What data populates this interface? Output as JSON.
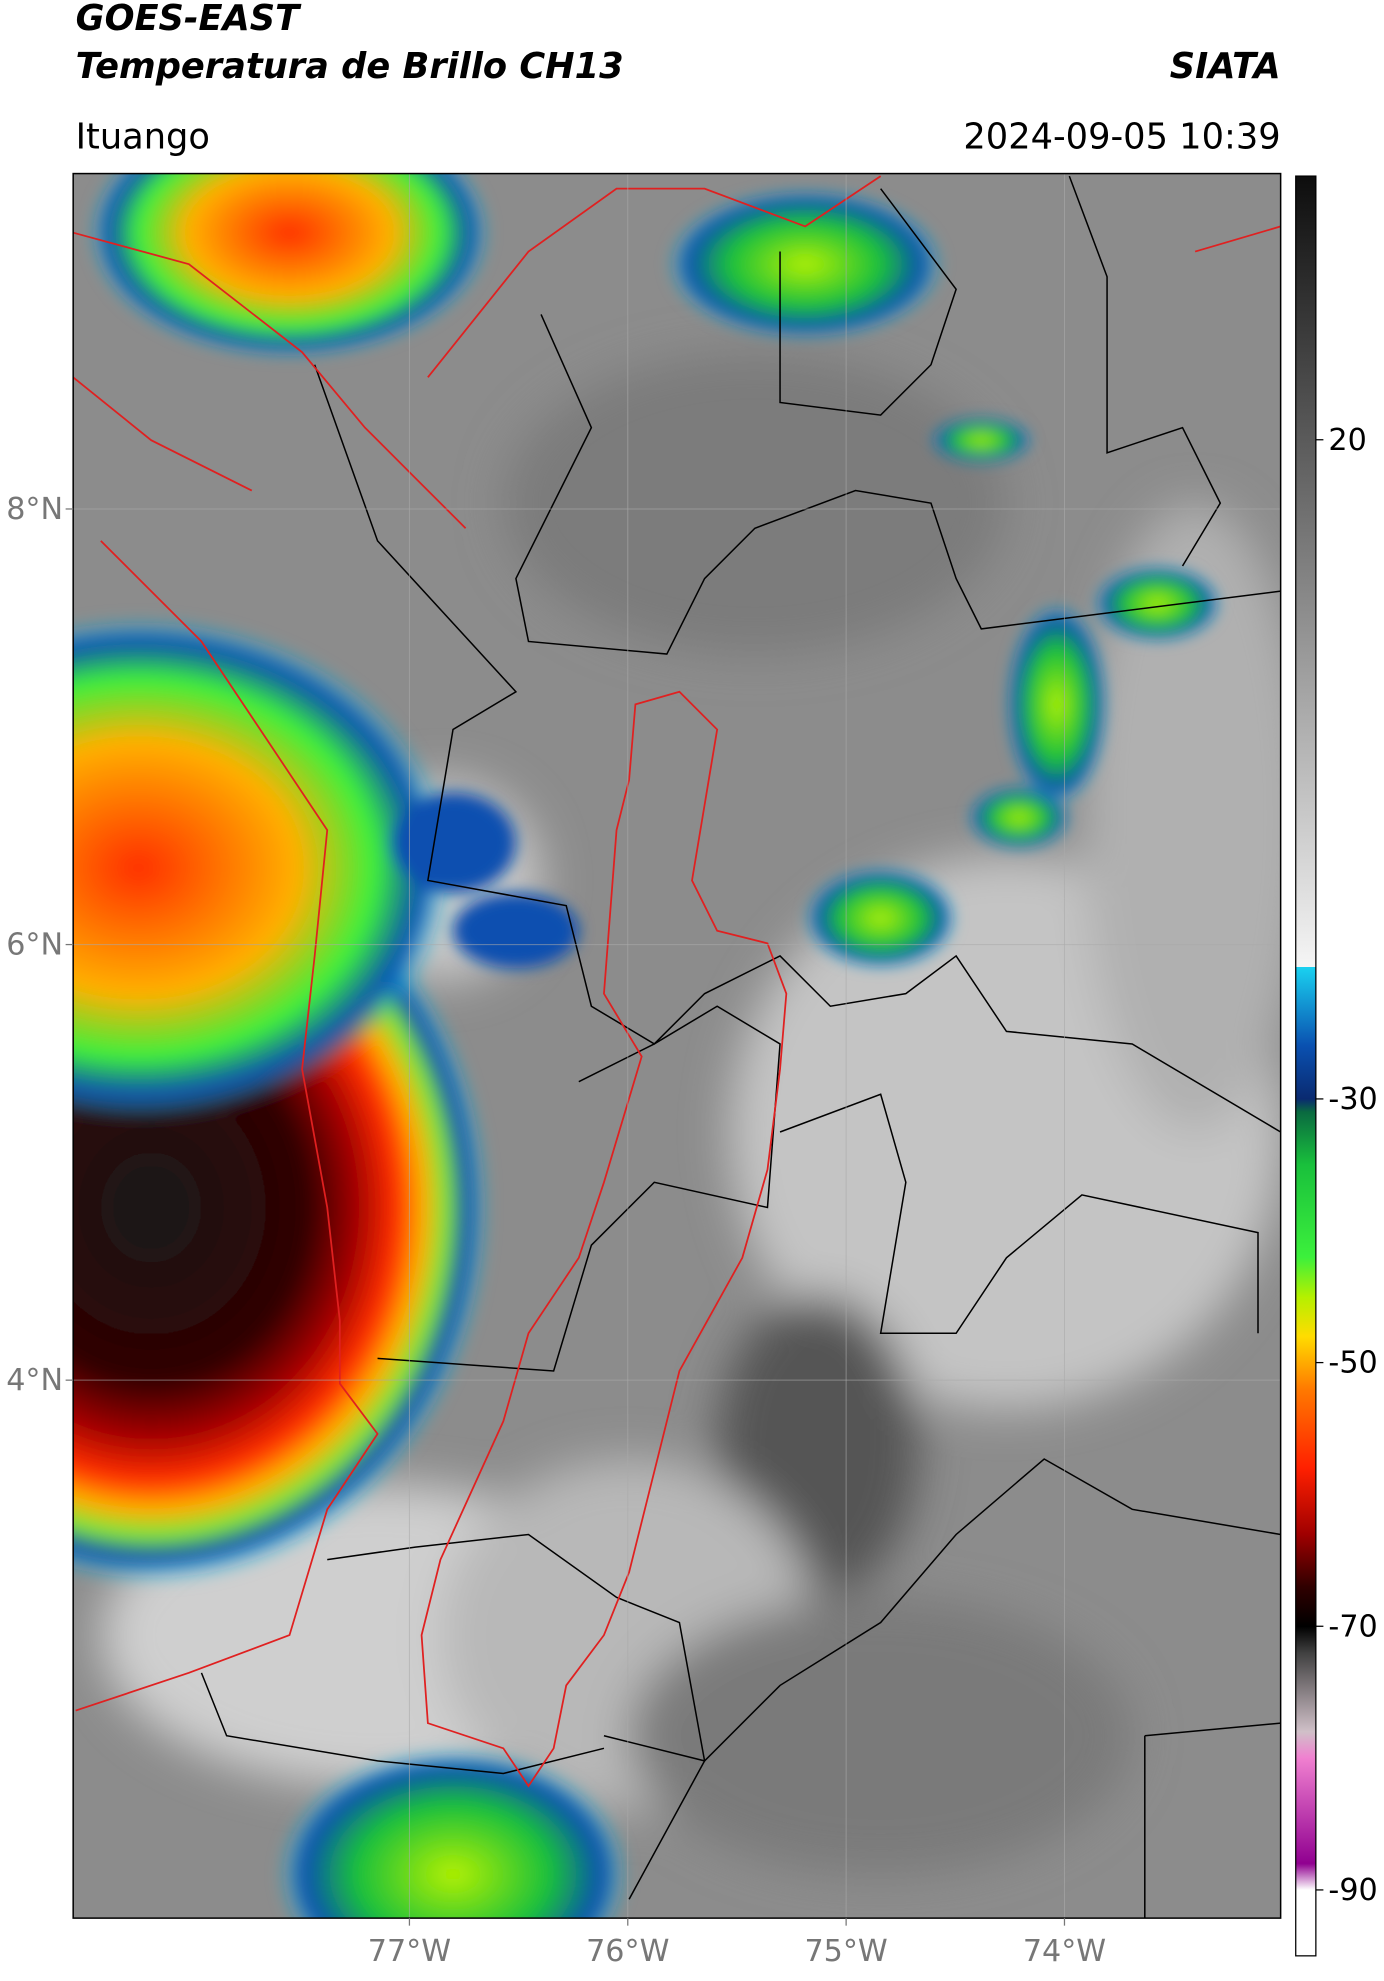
{
  "header": {
    "title": "GOES-EAST",
    "subtitle": "Temperatura de Brillo CH13",
    "source": "SIATA",
    "location": "Ituango",
    "datetime": "2024-09-05 10:39"
  },
  "chart_data": {
    "type": "map",
    "xlim": [
      -78.54,
      -73.01
    ],
    "ylim": [
      1.53,
      9.54
    ],
    "xticks": [
      {
        "value": -77,
        "label": "77°W"
      },
      {
        "value": -76,
        "label": "76°W"
      },
      {
        "value": -75,
        "label": "75°W"
      },
      {
        "value": -74,
        "label": "74°W"
      }
    ],
    "yticks": [
      {
        "value": 8,
        "label": "8°N"
      },
      {
        "value": 6,
        "label": "6°N"
      },
      {
        "value": 4,
        "label": "4°N"
      }
    ],
    "grid": true,
    "colorbar": {
      "lim": [
        -95,
        40
      ],
      "ticks": [
        20,
        -30,
        -50,
        -70,
        -90
      ],
      "stops": [
        [
          40,
          "#0d0d0d"
        ],
        [
          -20,
          "#f5f5f5"
        ],
        [
          -20,
          "#1ad1f0"
        ],
        [
          -26,
          "#0a50b0"
        ],
        [
          -30,
          "#0a2a70"
        ],
        [
          -31,
          "#0a6a40"
        ],
        [
          -35,
          "#19c03c"
        ],
        [
          -42,
          "#3cf03c"
        ],
        [
          -45,
          "#b4f000"
        ],
        [
          -48,
          "#ffdc00"
        ],
        [
          -52,
          "#ff7a00"
        ],
        [
          -58,
          "#ff2000"
        ],
        [
          -63,
          "#a00000"
        ],
        [
          -67,
          "#300000"
        ],
        [
          -70,
          "#000000"
        ],
        [
          -72,
          "#404040"
        ],
        [
          -78,
          "#d0c0c8"
        ],
        [
          -80,
          "#f080d0"
        ],
        [
          -88,
          "#900090"
        ],
        [
          -90,
          "#ffffff"
        ],
        [
          -95,
          "#ffffff"
        ]
      ]
    }
  }
}
